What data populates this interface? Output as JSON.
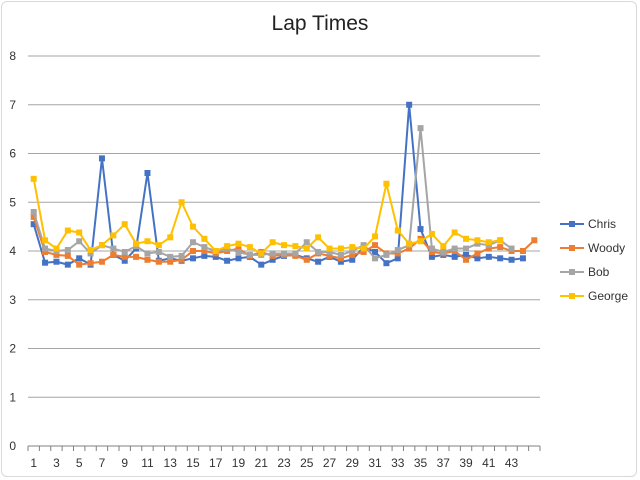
{
  "chart_data": {
    "type": "line",
    "title": "Lap Times",
    "xlabel": "",
    "ylabel": "",
    "ylim": [
      0,
      8
    ],
    "yticks": [
      0,
      1,
      2,
      3,
      4,
      5,
      6,
      7,
      8
    ],
    "grid": true,
    "legend": "right",
    "x": [
      1,
      2,
      3,
      4,
      5,
      6,
      7,
      8,
      9,
      10,
      11,
      12,
      13,
      14,
      15,
      16,
      17,
      18,
      19,
      20,
      21,
      22,
      23,
      24,
      25,
      26,
      27,
      28,
      29,
      30,
      31,
      32,
      33,
      34,
      35,
      36,
      37,
      38,
      39,
      40,
      41,
      42,
      43,
      44,
      45
    ],
    "xtick_labels": [
      "1",
      "3",
      "5",
      "7",
      "9",
      "11",
      "13",
      "15",
      "17",
      "19",
      "21",
      "23",
      "25",
      "27",
      "29",
      "31",
      "33",
      "35",
      "37",
      "39",
      "41",
      "43"
    ],
    "series": [
      {
        "name": "Chris",
        "color": "#4472c4",
        "values": [
          4.55,
          3.76,
          3.78,
          3.72,
          3.85,
          3.72,
          5.9,
          3.92,
          3.8,
          4.05,
          5.6,
          3.8,
          3.85,
          3.8,
          3.85,
          3.9,
          3.88,
          3.8,
          3.85,
          3.88,
          3.72,
          3.82,
          3.9,
          3.92,
          3.85,
          3.78,
          3.88,
          3.78,
          3.82,
          4.08,
          3.98,
          3.75,
          3.85,
          7.0,
          4.45,
          3.88,
          3.92,
          3.88,
          3.92,
          3.85,
          3.88,
          3.85,
          3.82,
          3.85,
          null
        ]
      },
      {
        "name": "Woody",
        "color": "#ed7d31",
        "values": [
          4.7,
          3.98,
          3.92,
          3.9,
          3.72,
          3.75,
          3.78,
          3.92,
          3.88,
          3.88,
          3.82,
          3.78,
          3.78,
          3.82,
          4.0,
          4.0,
          3.95,
          4.0,
          4.05,
          3.9,
          3.98,
          3.9,
          3.92,
          3.9,
          3.82,
          3.95,
          3.9,
          3.85,
          3.92,
          3.98,
          4.12,
          3.95,
          3.95,
          4.05,
          4.25,
          3.98,
          3.95,
          4.0,
          3.82,
          3.95,
          4.05,
          4.08,
          4.0,
          4.0,
          4.22
        ]
      },
      {
        "name": "Bob",
        "color": "#a5a5a5",
        "values": [
          4.8,
          4.05,
          4.0,
          4.02,
          4.2,
          3.95,
          4.12,
          4.05,
          3.98,
          4.1,
          3.95,
          3.98,
          3.88,
          3.9,
          4.18,
          4.08,
          4.0,
          4.05,
          3.98,
          3.92,
          3.92,
          3.95,
          3.95,
          3.95,
          4.18,
          3.98,
          3.98,
          3.92,
          4.0,
          4.12,
          3.85,
          3.92,
          4.02,
          4.12,
          6.52,
          4.05,
          3.98,
          4.05,
          4.05,
          4.15,
          4.12,
          4.22,
          4.05,
          null,
          null
        ]
      },
      {
        "name": "George",
        "color": "#ffc000",
        "values": [
          5.48,
          4.22,
          4.05,
          4.42,
          4.38,
          4.02,
          4.12,
          4.32,
          4.55,
          4.15,
          4.2,
          4.12,
          4.28,
          5.0,
          4.5,
          4.25,
          4.0,
          4.1,
          4.15,
          4.08,
          3.95,
          4.18,
          4.12,
          4.1,
          4.05,
          4.28,
          4.05,
          4.05,
          4.08,
          4.05,
          4.3,
          5.38,
          4.42,
          4.15,
          4.2,
          4.35,
          4.1,
          4.38,
          4.25,
          4.22,
          4.18,
          4.22,
          null,
          null,
          null
        ]
      }
    ]
  }
}
